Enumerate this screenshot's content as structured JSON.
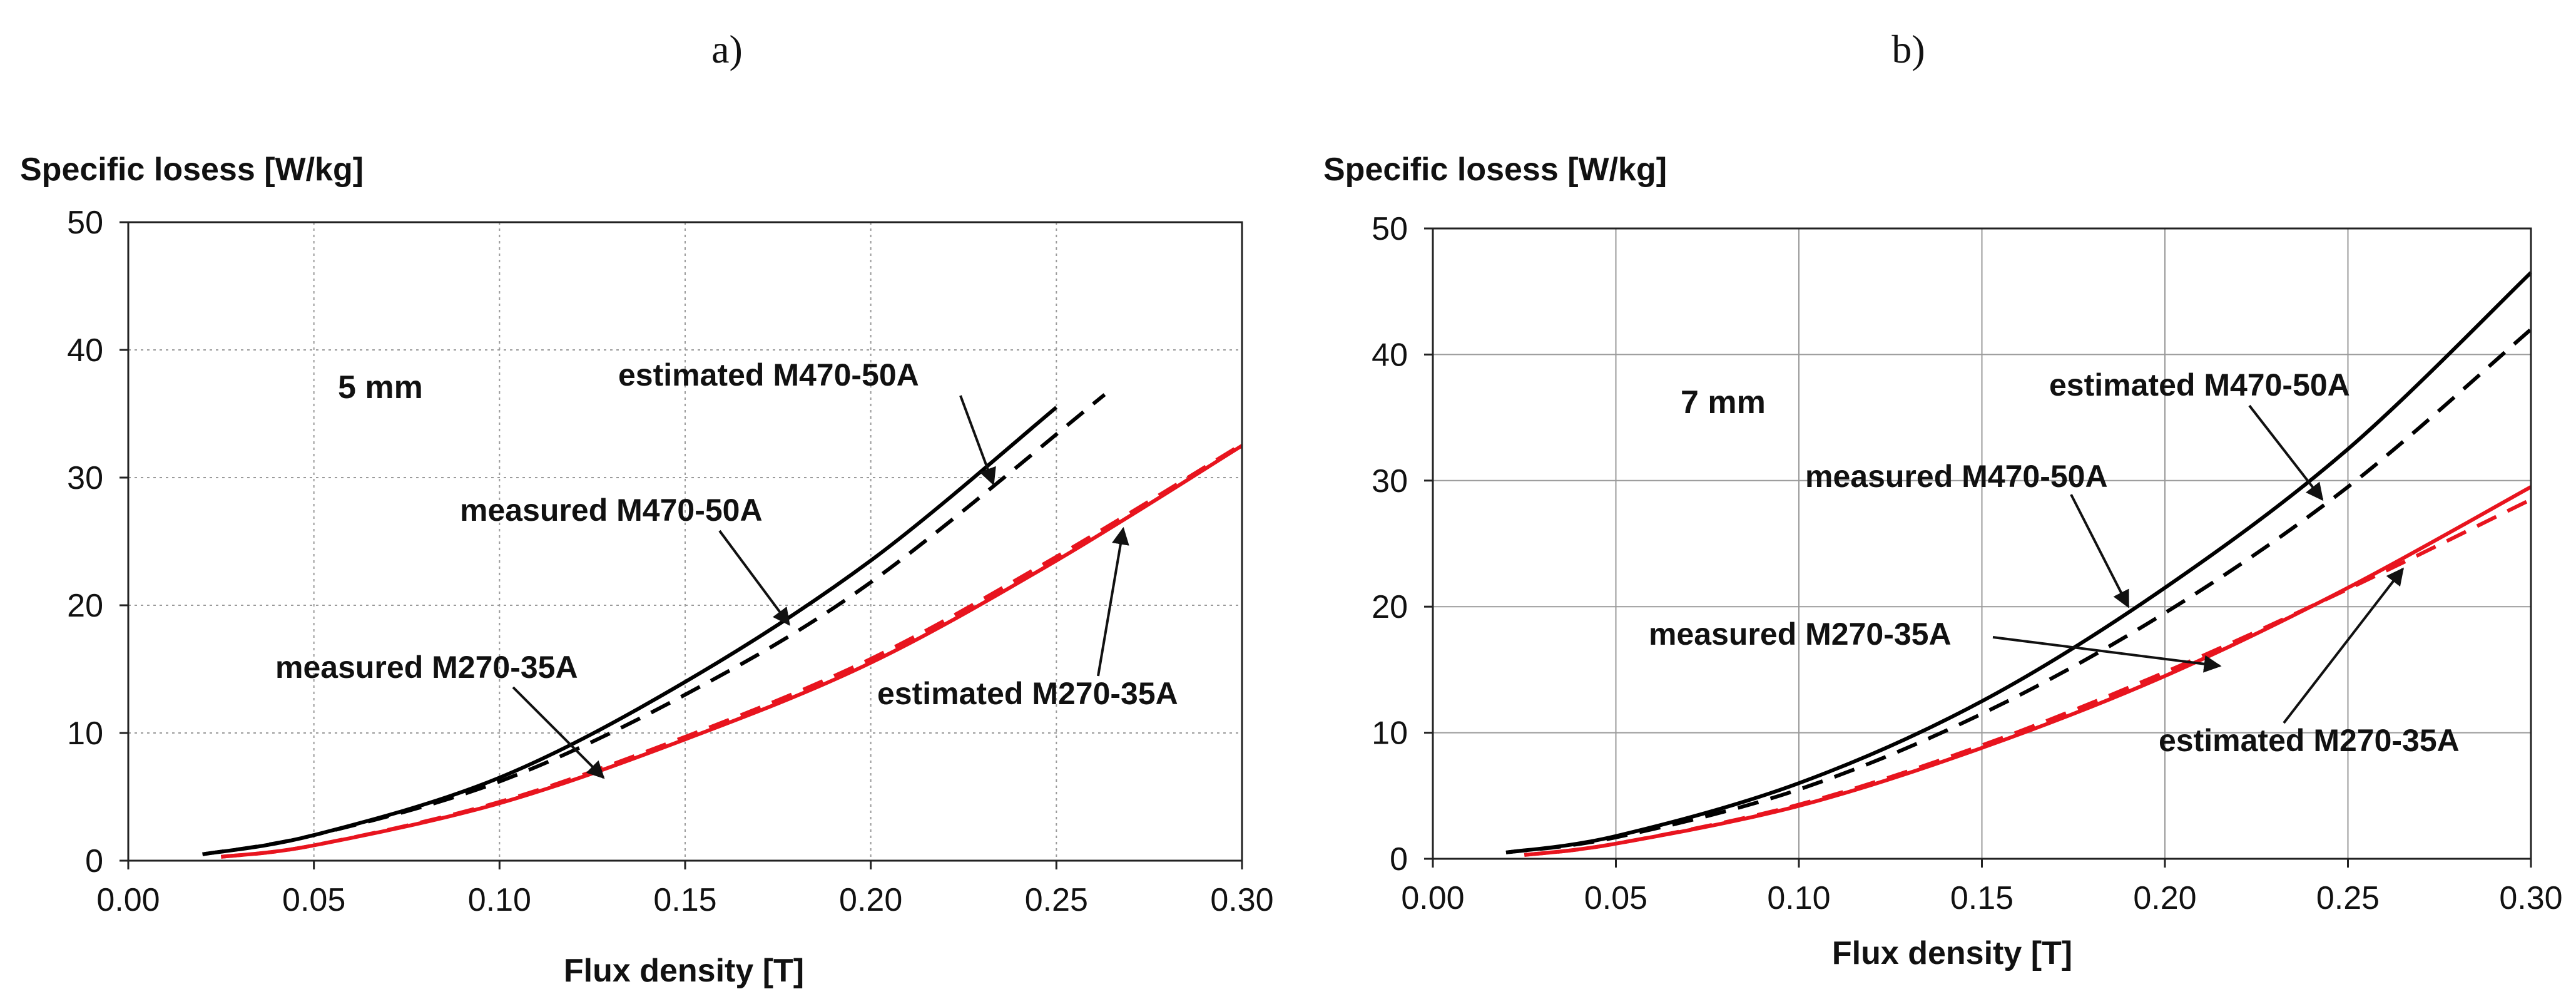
{
  "chart_data": [
    {
      "panel_label": "a)",
      "type": "line",
      "title": "",
      "xlabel": "Flux density [T]",
      "ylabel": "Specific losess [W/kg]",
      "xlim": [
        0.0,
        0.3
      ],
      "ylim": [
        0,
        50
      ],
      "xticks": [
        "0.00",
        "0.05",
        "0.10",
        "0.15",
        "0.20",
        "0.25",
        "0.30"
      ],
      "yticks": [
        "0",
        "10",
        "20",
        "30",
        "40",
        "50"
      ],
      "grid": true,
      "annotation": "5 mm",
      "series": [
        {
          "name": "measured M470-50A",
          "color": "#000000",
          "dash": "solid",
          "x": [
            0.02,
            0.05,
            0.1,
            0.15,
            0.2,
            0.25
          ],
          "y": [
            0.5,
            2.0,
            6.5,
            14.0,
            23.5,
            35.5
          ]
        },
        {
          "name": "estimated M470-50A",
          "color": "#000000",
          "dash": "dashed",
          "x": [
            0.02,
            0.05,
            0.1,
            0.15,
            0.2,
            0.263
          ],
          "y": [
            0.5,
            2.0,
            6.2,
            13.0,
            21.8,
            36.5
          ]
        },
        {
          "name": "measured M270-35A",
          "color": "#e8141e",
          "dash": "solid",
          "x": [
            0.025,
            0.05,
            0.1,
            0.15,
            0.2,
            0.25,
            0.3
          ],
          "y": [
            0.3,
            1.2,
            4.5,
            9.5,
            15.5,
            23.5,
            32.5
          ]
        },
        {
          "name": "estimated M270-35A",
          "color": "#e8141e",
          "dash": "dashed",
          "x": [
            0.025,
            0.05,
            0.1,
            0.15,
            0.2,
            0.25,
            0.3
          ],
          "y": [
            0.3,
            1.2,
            4.6,
            9.7,
            15.8,
            23.8,
            32.6
          ]
        }
      ],
      "callouts": [
        {
          "text": "estimated M470-50A",
          "series": "estimated M470-50A",
          "at": [
            0.233,
            29.5
          ]
        },
        {
          "text": "measured M470-50A",
          "series": "measured M470-50A",
          "at": [
            0.178,
            18.5
          ]
        },
        {
          "text": "measured M270-35A",
          "series": "measured M270-35A",
          "at": [
            0.128,
            6.5
          ]
        },
        {
          "text": "estimated M270-35A",
          "series": "estimated M270-35A",
          "at": [
            0.268,
            26.0
          ]
        }
      ]
    },
    {
      "panel_label": "b)",
      "type": "line",
      "title": "",
      "xlabel": "Flux density [T]",
      "ylabel": "Specific losess [W/kg]",
      "xlim": [
        0.0,
        0.3
      ],
      "ylim": [
        0,
        50
      ],
      "xticks": [
        "0.00",
        "0.05",
        "0.10",
        "0.15",
        "0.20",
        "0.25",
        "0.30"
      ],
      "yticks": [
        "0",
        "10",
        "20",
        "30",
        "40",
        "50"
      ],
      "grid": true,
      "annotation": "7 mm",
      "series": [
        {
          "name": "measured M470-50A",
          "color": "#000000",
          "dash": "solid",
          "x": [
            0.02,
            0.05,
            0.1,
            0.15,
            0.2,
            0.25,
            0.3
          ],
          "y": [
            0.5,
            1.8,
            6.0,
            12.5,
            21.5,
            32.5,
            46.5
          ]
        },
        {
          "name": "estimated M470-50A",
          "color": "#000000",
          "dash": "dashed",
          "x": [
            0.02,
            0.05,
            0.1,
            0.15,
            0.2,
            0.25,
            0.3
          ],
          "y": [
            0.5,
            1.7,
            5.5,
            11.5,
            19.5,
            29.5,
            42.0
          ]
        },
        {
          "name": "measured M270-35A",
          "color": "#e8141e",
          "dash": "solid",
          "x": [
            0.025,
            0.05,
            0.1,
            0.15,
            0.2,
            0.25,
            0.3
          ],
          "y": [
            0.3,
            1.2,
            4.2,
            8.8,
            14.5,
            21.5,
            29.5
          ]
        },
        {
          "name": "estimated M270-35A",
          "color": "#e8141e",
          "dash": "dashed",
          "x": [
            0.025,
            0.05,
            0.1,
            0.15,
            0.2,
            0.25,
            0.3
          ],
          "y": [
            0.3,
            1.2,
            4.3,
            9.0,
            14.8,
            21.4,
            28.5
          ]
        }
      ],
      "callouts": [
        {
          "text": "estimated M470-50A",
          "series": "estimated M470-50A",
          "at": [
            0.243,
            28.5
          ]
        },
        {
          "text": "measured M470-50A",
          "series": "measured M470-50A",
          "at": [
            0.19,
            20.0
          ]
        },
        {
          "text": "measured M270-35A",
          "series": "measured M270-35A",
          "at": [
            0.215,
            15.3
          ]
        },
        {
          "text": "estimated M270-35A",
          "series": "estimated M270-35A",
          "at": [
            0.265,
            23.0
          ]
        }
      ]
    }
  ]
}
